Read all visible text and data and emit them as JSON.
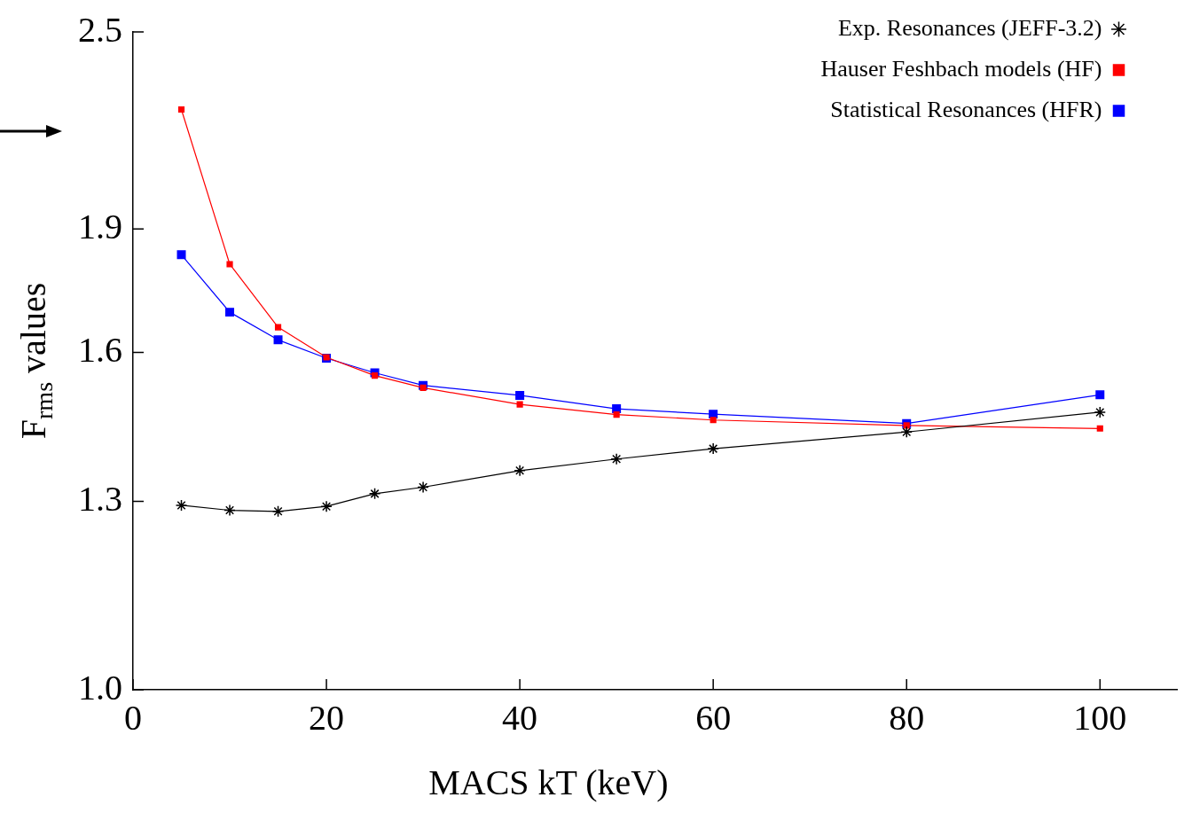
{
  "chart_data": {
    "type": "line",
    "xlabel": "MACS kT (keV)",
    "ylabel": "F$_{rms}$ values",
    "log": "y",
    "legend": "top right",
    "grid": false,
    "x": [
      5,
      10,
      15,
      20,
      25,
      30,
      40,
      50,
      60,
      80,
      100
    ],
    "xlim": [
      0,
      108
    ],
    "xticks": [
      0,
      20,
      40,
      60,
      80,
      100
    ],
    "ylim": [
      1.0,
      2.5
    ],
    "yticks": [
      {
        "value": 1.0,
        "label": "1.0"
      },
      1.3,
      1.6,
      1.9,
      2.5
    ],
    "series": [
      {
        "name": "Statistical Resonances (HFR)",
        "color": "#0000ff",
        "marker": "square",
        "values": [
          1.833,
          1.692,
          1.628,
          1.587,
          1.555,
          1.528,
          1.507,
          1.479,
          1.468,
          1.449,
          1.508
        ]
      },
      {
        "name": "Hauser Feshbach models (HF)",
        "color": "#ff0000",
        "marker": "square",
        "values": [
          2.244,
          1.809,
          1.657,
          1.589,
          1.549,
          1.523,
          1.488,
          1.467,
          1.456,
          1.445,
          1.439
        ]
      },
      {
        "name": "Exp. Resonances (JEFF-3.2)",
        "color": "#000000",
        "marker": "cross",
        "values": [
          1.293,
          1.284,
          1.282,
          1.291,
          1.314,
          1.326,
          1.357,
          1.379,
          1.399,
          1.432,
          1.472
        ]
      }
    ]
  }
}
